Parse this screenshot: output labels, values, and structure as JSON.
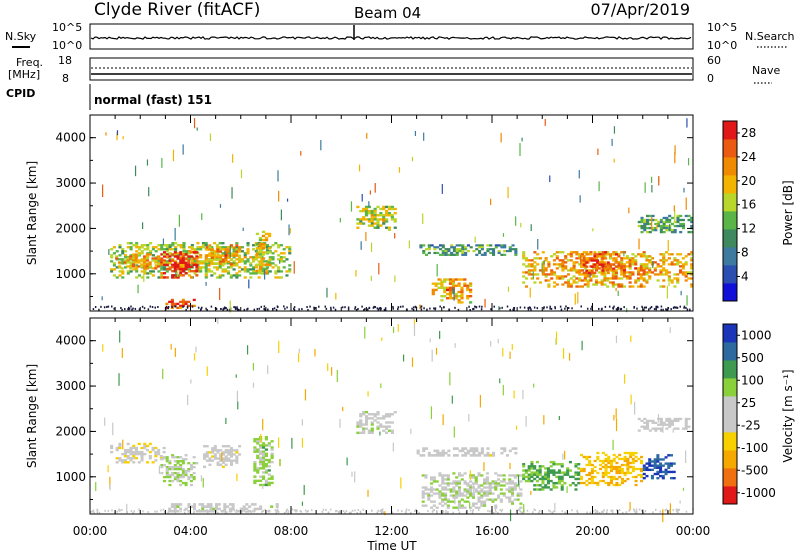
{
  "header": {
    "station": "Clyde River (fitACF)",
    "beam": "Beam 04",
    "date": "07/Apr/2019"
  },
  "panels": {
    "nsky": {
      "label": "N.Sky",
      "left_ticks": [
        "10^5",
        "10^0"
      ],
      "right_ticks": [
        "10^5",
        "10^0"
      ],
      "right_label": "N.Search"
    },
    "freq": {
      "label_line1": "Freq.",
      "label_line2": "[MHz]",
      "left_ticks": [
        "18",
        "8"
      ],
      "right_ticks": [
        "60",
        "0"
      ],
      "right_label": "Nave"
    },
    "cpid": {
      "label": "CPID",
      "value": "normal (fast) 151"
    }
  },
  "colors": {
    "power_scale": [
      "#1010d8",
      "#2a4fb0",
      "#3c7aa0",
      "#3e8a5e",
      "#59b548",
      "#b9d62a",
      "#f2b400",
      "#f08a00",
      "#ea5a10",
      "#e01818"
    ],
    "velocity_scale": [
      "#e01818",
      "#f07010",
      "#f5a800",
      "#f7d000",
      "#c8c8c8",
      "#c8c8c8",
      "#8ad03a",
      "#3e9a4e",
      "#2c6aa0",
      "#1a35b8"
    ],
    "noise_dark": "#1a1a40"
  },
  "chart_data": [
    {
      "type": "heatmap",
      "name": "power",
      "ylabel": "Slant Range [km]",
      "ylim": [
        180,
        4500
      ],
      "yticks": [
        1000,
        2000,
        3000,
        4000
      ],
      "colorbar": {
        "label": "Power [dB]",
        "ticks": [
          "28",
          "24",
          "20",
          "16",
          "12",
          "8",
          "4"
        ],
        "range": [
          0,
          30
        ]
      },
      "patches": [
        {
          "t0": 0.8,
          "t1": 8.0,
          "r0": 900,
          "r1": 1700,
          "v": 15
        },
        {
          "t0": 2.8,
          "t1": 4.3,
          "r0": 900,
          "r1": 1500,
          "v": 27
        },
        {
          "t0": 1.0,
          "t1": 3.0,
          "r0": 1100,
          "r1": 1450,
          "v": 20
        },
        {
          "t0": 4.6,
          "t1": 6.0,
          "r0": 1200,
          "r1": 1650,
          "v": 20
        },
        {
          "t0": 6.6,
          "t1": 7.2,
          "r0": 1000,
          "r1": 1950,
          "v": 17
        },
        {
          "t0": 10.6,
          "t1": 12.2,
          "r0": 1950,
          "r1": 2500,
          "v": 15
        },
        {
          "t0": 13.6,
          "t1": 15.2,
          "r0": 350,
          "r1": 900,
          "v": 20
        },
        {
          "t0": 17.2,
          "t1": 24.0,
          "r0": 700,
          "r1": 1500,
          "v": 20
        },
        {
          "t0": 19.5,
          "t1": 21.0,
          "r0": 1000,
          "r1": 1500,
          "v": 24
        },
        {
          "t0": 21.8,
          "t1": 24.0,
          "r0": 1900,
          "r1": 2300,
          "v": 11
        },
        {
          "t0": 13.0,
          "t1": 17.0,
          "r0": 1400,
          "r1": 1650,
          "v": 10
        },
        {
          "t0": 3.0,
          "t1": 4.2,
          "r0": 230,
          "r1": 450,
          "v": 25
        }
      ]
    },
    {
      "type": "heatmap",
      "name": "velocity",
      "ylabel": "Slant Range [km]",
      "xlabel": "Time UT",
      "ylim": [
        180,
        4500
      ],
      "yticks": [
        1000,
        2000,
        3000,
        4000
      ],
      "x_ticks": [
        "00:00",
        "04:00",
        "08:00",
        "12:00",
        "16:00",
        "20:00",
        "00:00"
      ],
      "colorbar": {
        "label": "Velocity [m s⁻¹]",
        "ticks": [
          "1000",
          "500",
          "100",
          "25",
          "-25",
          "-100",
          "-500",
          "-1000"
        ],
        "range": [
          -1000,
          1000
        ]
      },
      "patches": [
        {
          "t0": 0.8,
          "t1": 3.0,
          "r0": 1300,
          "r1": 1750,
          "v": -120
        },
        {
          "t0": 2.8,
          "t1": 4.3,
          "r0": 800,
          "r1": 1500,
          "v": 200
        },
        {
          "t0": 4.5,
          "t1": 6.0,
          "r0": 1200,
          "r1": 1700,
          "v": -80
        },
        {
          "t0": 6.5,
          "t1": 7.3,
          "r0": 800,
          "r1": 1900,
          "v": 250
        },
        {
          "t0": 10.6,
          "t1": 12.2,
          "r0": 1950,
          "r1": 2450,
          "v": 80
        },
        {
          "t0": 13.2,
          "t1": 17.2,
          "r0": 300,
          "r1": 1100,
          "v": 120
        },
        {
          "t0": 17.2,
          "t1": 19.5,
          "r0": 700,
          "r1": 1350,
          "v": 400
        },
        {
          "t0": 19.5,
          "t1": 22.0,
          "r0": 800,
          "r1": 1550,
          "v": -400
        },
        {
          "t0": 22.0,
          "t1": 23.3,
          "r0": 950,
          "r1": 1500,
          "v": 800
        },
        {
          "t0": 21.8,
          "t1": 24.0,
          "r0": 2000,
          "r1": 2300,
          "v": 0
        },
        {
          "t0": 13.0,
          "t1": 17.0,
          "r0": 1450,
          "r1": 1650,
          "v": -60
        },
        {
          "t0": 3.0,
          "t1": 7.5,
          "r0": 220,
          "r1": 420,
          "v": 60
        }
      ]
    }
  ]
}
